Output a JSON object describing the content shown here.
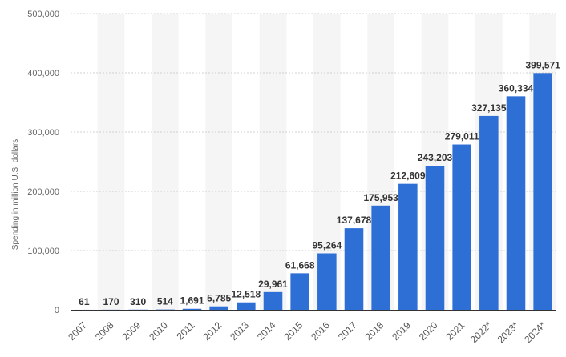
{
  "chart_data": {
    "type": "bar",
    "title": "",
    "xlabel": "",
    "ylabel": "Spending in million U.S. dollars",
    "ylim": [
      0,
      500000
    ],
    "yticks": [
      0,
      100000,
      200000,
      300000,
      400000,
      500000
    ],
    "ytick_labels": [
      "0",
      "100,000",
      "200,000",
      "300,000",
      "400,000",
      "500,000"
    ],
    "categories": [
      "2007",
      "2008",
      "2009",
      "2010",
      "2011",
      "2012",
      "2013",
      "2014",
      "2015",
      "2016",
      "2017",
      "2018",
      "2019",
      "2020",
      "2021",
      "2022*",
      "2023*",
      "2024*"
    ],
    "values": [
      61,
      170,
      310,
      514,
      1691,
      5785,
      12518,
      29961,
      61668,
      95264,
      137678,
      175953,
      212609,
      243203,
      279011,
      327135,
      360334,
      399571
    ],
    "value_labels": [
      "61",
      "170",
      "310",
      "514",
      "1,691",
      "5,785",
      "12,518",
      "29,961",
      "61,668",
      "95,264",
      "137,678",
      "175,953",
      "212,609",
      "243,203",
      "279,011",
      "327,135",
      "360,334",
      "399,571"
    ],
    "colors": {
      "bar": "#2e6fd6",
      "band": "#f5f5f5",
      "grid": "#d0d0d0",
      "axis": "#333333"
    }
  }
}
